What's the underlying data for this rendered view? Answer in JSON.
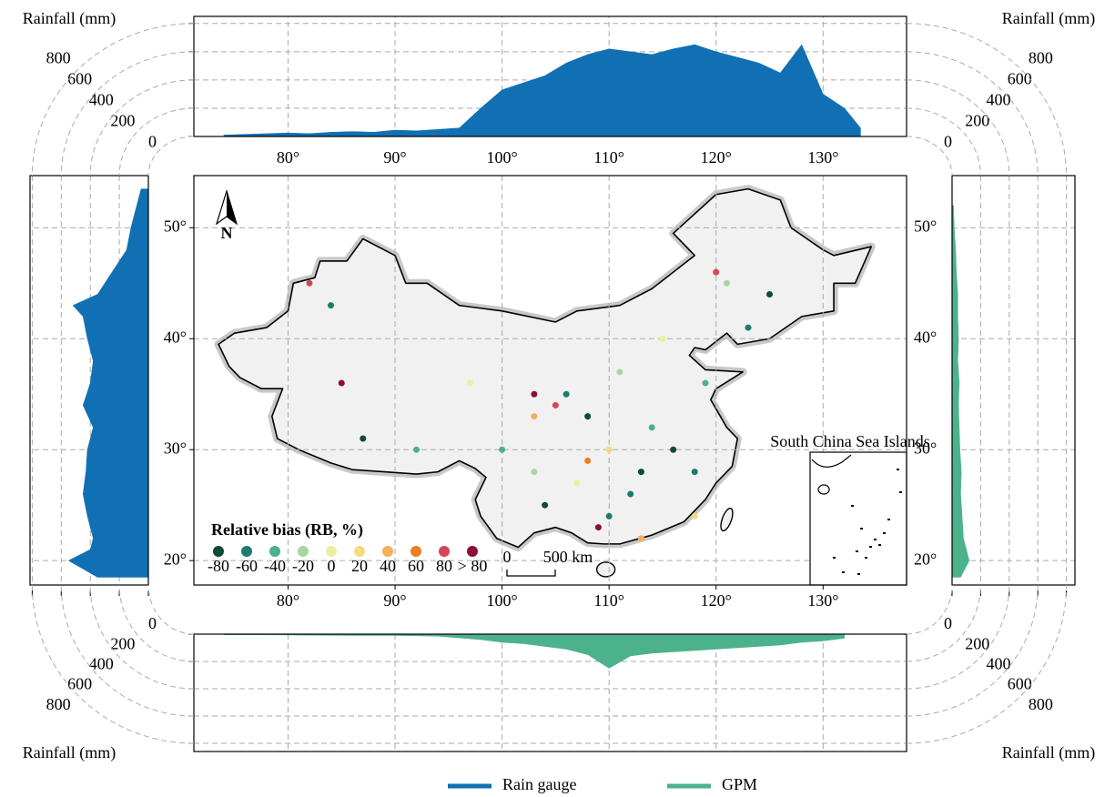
{
  "chart_data": [
    {
      "type": "area",
      "ylabel": "Rainfall (mm)",
      "x": [
        74,
        76,
        78,
        80,
        82,
        84,
        86,
        88,
        90,
        92,
        94,
        96,
        98,
        100,
        102,
        104,
        106,
        108,
        110,
        112,
        114,
        116,
        118,
        120,
        122,
        124,
        126,
        128,
        130,
        132,
        133.5
      ],
      "series": [
        {
          "name": "Rain gauge",
          "color": "#1170b3",
          "values": [
            10,
            15,
            20,
            25,
            20,
            30,
            35,
            30,
            45,
            40,
            50,
            60,
            200,
            330,
            380,
            430,
            520,
            580,
            620,
            600,
            580,
            620,
            650,
            600,
            560,
            520,
            450,
            650,
            300,
            200,
            60
          ]
        }
      ],
      "xlim": [
        71.2,
        137.8
      ],
      "ylim": [
        0,
        850
      ],
      "yticks": [
        0,
        200,
        400,
        600,
        800
      ],
      "grid": true
    },
    {
      "type": "area",
      "ylabel": "Rainfall (mm)",
      "x": [
        74,
        78,
        82,
        86,
        90,
        94,
        98,
        100,
        102,
        104,
        106,
        108,
        110,
        112,
        114,
        116,
        118,
        120,
        122,
        124,
        126,
        128,
        130,
        132
      ],
      "series": [
        {
          "name": "GPM",
          "color": "#4cb28c",
          "values": [
            5,
            5,
            8,
            10,
            10,
            15,
            40,
            60,
            70,
            90,
            110,
            150,
            250,
            160,
            140,
            130,
            120,
            110,
            100,
            90,
            80,
            60,
            50,
            30
          ]
        }
      ],
      "xlim": [
        71.2,
        137.8
      ],
      "ylim": [
        0,
        860
      ],
      "yticks": [
        0,
        200,
        400,
        600,
        800
      ],
      "grid": true
    },
    {
      "type": "area",
      "x": [
        18.5,
        20,
        21,
        22,
        24,
        26,
        28,
        30,
        32,
        34,
        36,
        38,
        40,
        42,
        43,
        44,
        46,
        48,
        50,
        52,
        53.5
      ],
      "series": [
        {
          "name": "Rain gauge",
          "color": "#1170b3",
          "values": [
            350,
            550,
            400,
            380,
            420,
            450,
            430,
            420,
            380,
            450,
            400,
            380,
            420,
            450,
            520,
            350,
            250,
            150,
            120,
            80,
            50
          ]
        }
      ],
      "xlim": [
        17.8,
        54.7
      ],
      "ylim": [
        0,
        815
      ],
      "yticks": [
        0,
        200,
        400,
        600,
        800
      ],
      "grid": true
    },
    {
      "type": "area",
      "x": [
        18.5,
        20,
        21,
        22,
        24,
        26,
        28,
        30,
        32,
        34,
        36,
        38,
        40,
        42,
        44,
        46,
        48,
        50,
        52
      ],
      "series": [
        {
          "name": "GPM",
          "color": "#4cb28c",
          "values": [
            60,
            120,
            100,
            80,
            70,
            60,
            65,
            55,
            50,
            45,
            50,
            40,
            45,
            40,
            40,
            30,
            25,
            15,
            10
          ]
        }
      ],
      "xlim": [
        17.8,
        54.7
      ],
      "ylim": [
        0,
        860
      ],
      "yticks": [
        0,
        200,
        400,
        600,
        800
      ],
      "grid": true
    },
    {
      "type": "scatter",
      "legend_title": "Relative bias (RB, %)",
      "north_label": "N",
      "scale_bar_labels": [
        "0",
        "500 km"
      ],
      "inset_title": "South China Sea Islands",
      "xlim": [
        71.2,
        137.8
      ],
      "ylim": [
        17.8,
        54.7
      ],
      "grid": true,
      "xticks": [
        {
          "value": 80,
          "label": "80°"
        },
        {
          "value": 90,
          "label": "90°"
        },
        {
          "value": 100,
          "label": "100°"
        },
        {
          "value": 110,
          "label": "110°"
        },
        {
          "value": 120,
          "label": "120°"
        },
        {
          "value": 130,
          "label": "130°"
        }
      ],
      "yticks": [
        {
          "value": 20,
          "label": "20°"
        },
        {
          "value": 30,
          "label": "30°"
        },
        {
          "value": 40,
          "label": "40°"
        },
        {
          "value": 50,
          "label": "50°"
        }
      ],
      "series": [
        {
          "name": "-80",
          "color": "#0b4d2e",
          "x": [
            113,
            116,
            125,
            108,
            104,
            87
          ],
          "values": [
            28,
            30,
            44,
            33,
            25,
            31
          ]
        },
        {
          "name": "-60",
          "color": "#1a7c6b",
          "x": [
            112,
            118,
            123,
            106,
            84,
            110
          ],
          "values": [
            26,
            28,
            41,
            35,
            43,
            24
          ]
        },
        {
          "name": "-40",
          "color": "#4daf8f",
          "x": [
            114,
            100,
            119,
            92
          ],
          "values": [
            32,
            30,
            36,
            30
          ]
        },
        {
          "name": "-20",
          "color": "#a9d6a0",
          "x": [
            111,
            103,
            121
          ],
          "values": [
            37,
            28,
            45
          ]
        },
        {
          "name": "0",
          "color": "#eeeea0",
          "x": [
            115,
            107,
            97
          ],
          "values": [
            40,
            27,
            36
          ]
        },
        {
          "name": "20",
          "color": "#f7d983",
          "x": [
            118,
            110
          ],
          "values": [
            24,
            30
          ]
        },
        {
          "name": "40",
          "color": "#f5ad5e",
          "x": [
            103,
            113
          ],
          "values": [
            33,
            22
          ]
        },
        {
          "name": "60",
          "color": "#f27b22",
          "x": [
            108
          ],
          "values": [
            29
          ]
        },
        {
          "name": "80",
          "color": "#d64654",
          "x": [
            105,
            82,
            120
          ],
          "values": [
            34,
            45,
            46
          ]
        },
        {
          "name": "> 80",
          "color": "#8c0e35",
          "x": [
            103,
            109,
            85
          ],
          "values": [
            35,
            23,
            36
          ]
        }
      ]
    }
  ]
}
